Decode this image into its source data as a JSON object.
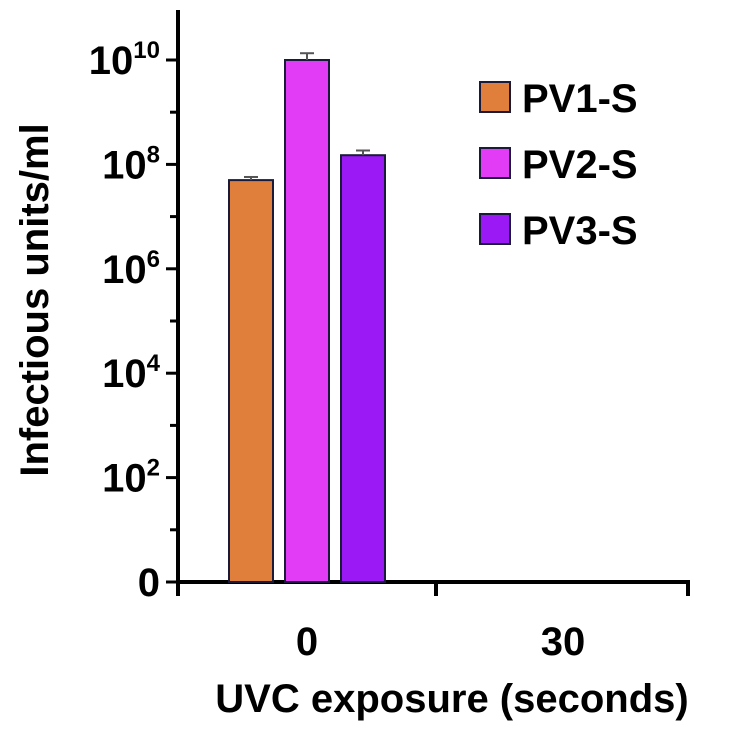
{
  "chart_data": {
    "type": "bar",
    "title": "",
    "xlabel": "UVC exposure (seconds)",
    "ylabel": "Infectious units/ml",
    "yscale": "log10",
    "ylim_log10": [
      0,
      10.8
    ],
    "y_ticks": [
      {
        "base": "0",
        "exp": "",
        "log10": 0
      },
      {
        "base": "10",
        "exp": "2",
        "log10": 2
      },
      {
        "base": "10",
        "exp": "4",
        "log10": 4
      },
      {
        "base": "10",
        "exp": "6",
        "log10": 6
      },
      {
        "base": "10",
        "exp": "8",
        "log10": 8
      },
      {
        "base": "10",
        "exp": "10",
        "log10": 10
      }
    ],
    "categories": [
      "0",
      "30"
    ],
    "series": [
      {
        "name": "PV1-S",
        "color": "#e07e3c",
        "values": [
          50000000,
          0
        ],
        "error": [
          0.06,
          0
        ]
      },
      {
        "name": "PV2-S",
        "color": "#e23cf7",
        "values": [
          10000000000,
          0
        ],
        "error": [
          0.13,
          0
        ]
      },
      {
        "name": "PV3-S",
        "color": "#9b19f5",
        "values": [
          150000000,
          0
        ],
        "error": [
          0.09,
          0
        ]
      }
    ],
    "legend_position": "top-right",
    "grid": false
  }
}
